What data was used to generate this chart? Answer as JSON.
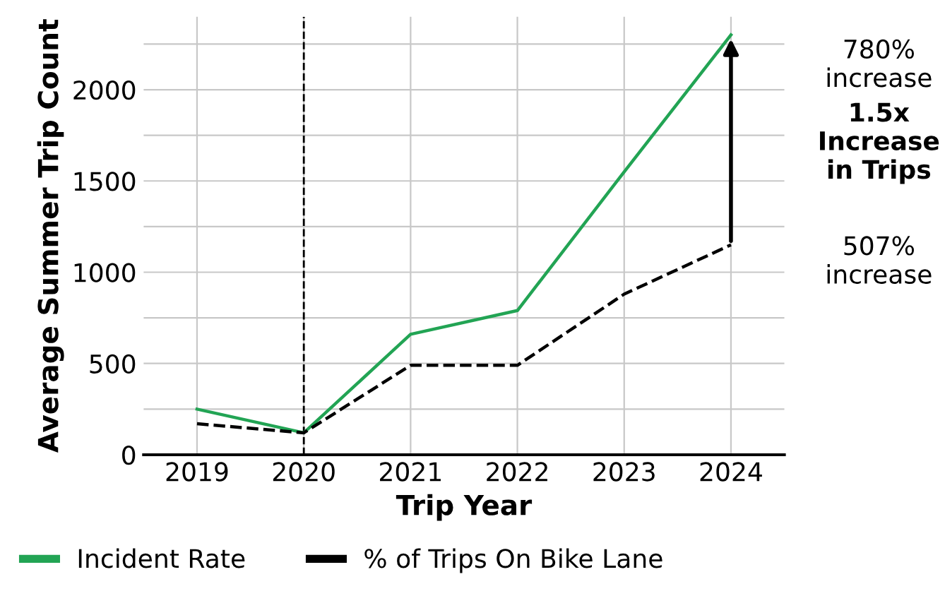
{
  "chart_data": {
    "type": "line",
    "xlabel": "Trip Year",
    "ylabel": "Average Summer Trip Count",
    "x": [
      2019,
      2020,
      2021,
      2022,
      2023,
      2024
    ],
    "series": [
      {
        "name": "Incident Rate",
        "color": "#22a454",
        "values": [
          250,
          120,
          660,
          790,
          1550,
          2300
        ],
        "line_style": "solid"
      },
      {
        "name": "% of Trips On Bike Lane",
        "color": "#000000",
        "values": [
          170,
          120,
          490,
          490,
          880,
          1150
        ],
        "line_style": "dashed"
      }
    ],
    "xlim": [
      2018.5,
      2024.5
    ],
    "xticks": [
      2019,
      2020,
      2021,
      2022,
      2023,
      2024
    ],
    "ylim": [
      0,
      2400
    ],
    "yticks": [
      0,
      {
        "value": 250,
        "label": null
      },
      500,
      {
        "value": 750,
        "label": null
      },
      1000,
      {
        "value": 1250,
        "label": null
      },
      1500,
      {
        "value": 1750,
        "label": null
      },
      2000,
      {
        "value": 2250,
        "label": null
      }
    ],
    "ref_lines": [
      {
        "axis": "x",
        "value": 2020,
        "color": "#000000",
        "line_style": "dashed"
      }
    ],
    "annotations": [
      "780% increase",
      "1.5x Increase in Trips",
      "507% increase"
    ],
    "grid": true,
    "legend": "bottom",
    "marker": "none"
  }
}
